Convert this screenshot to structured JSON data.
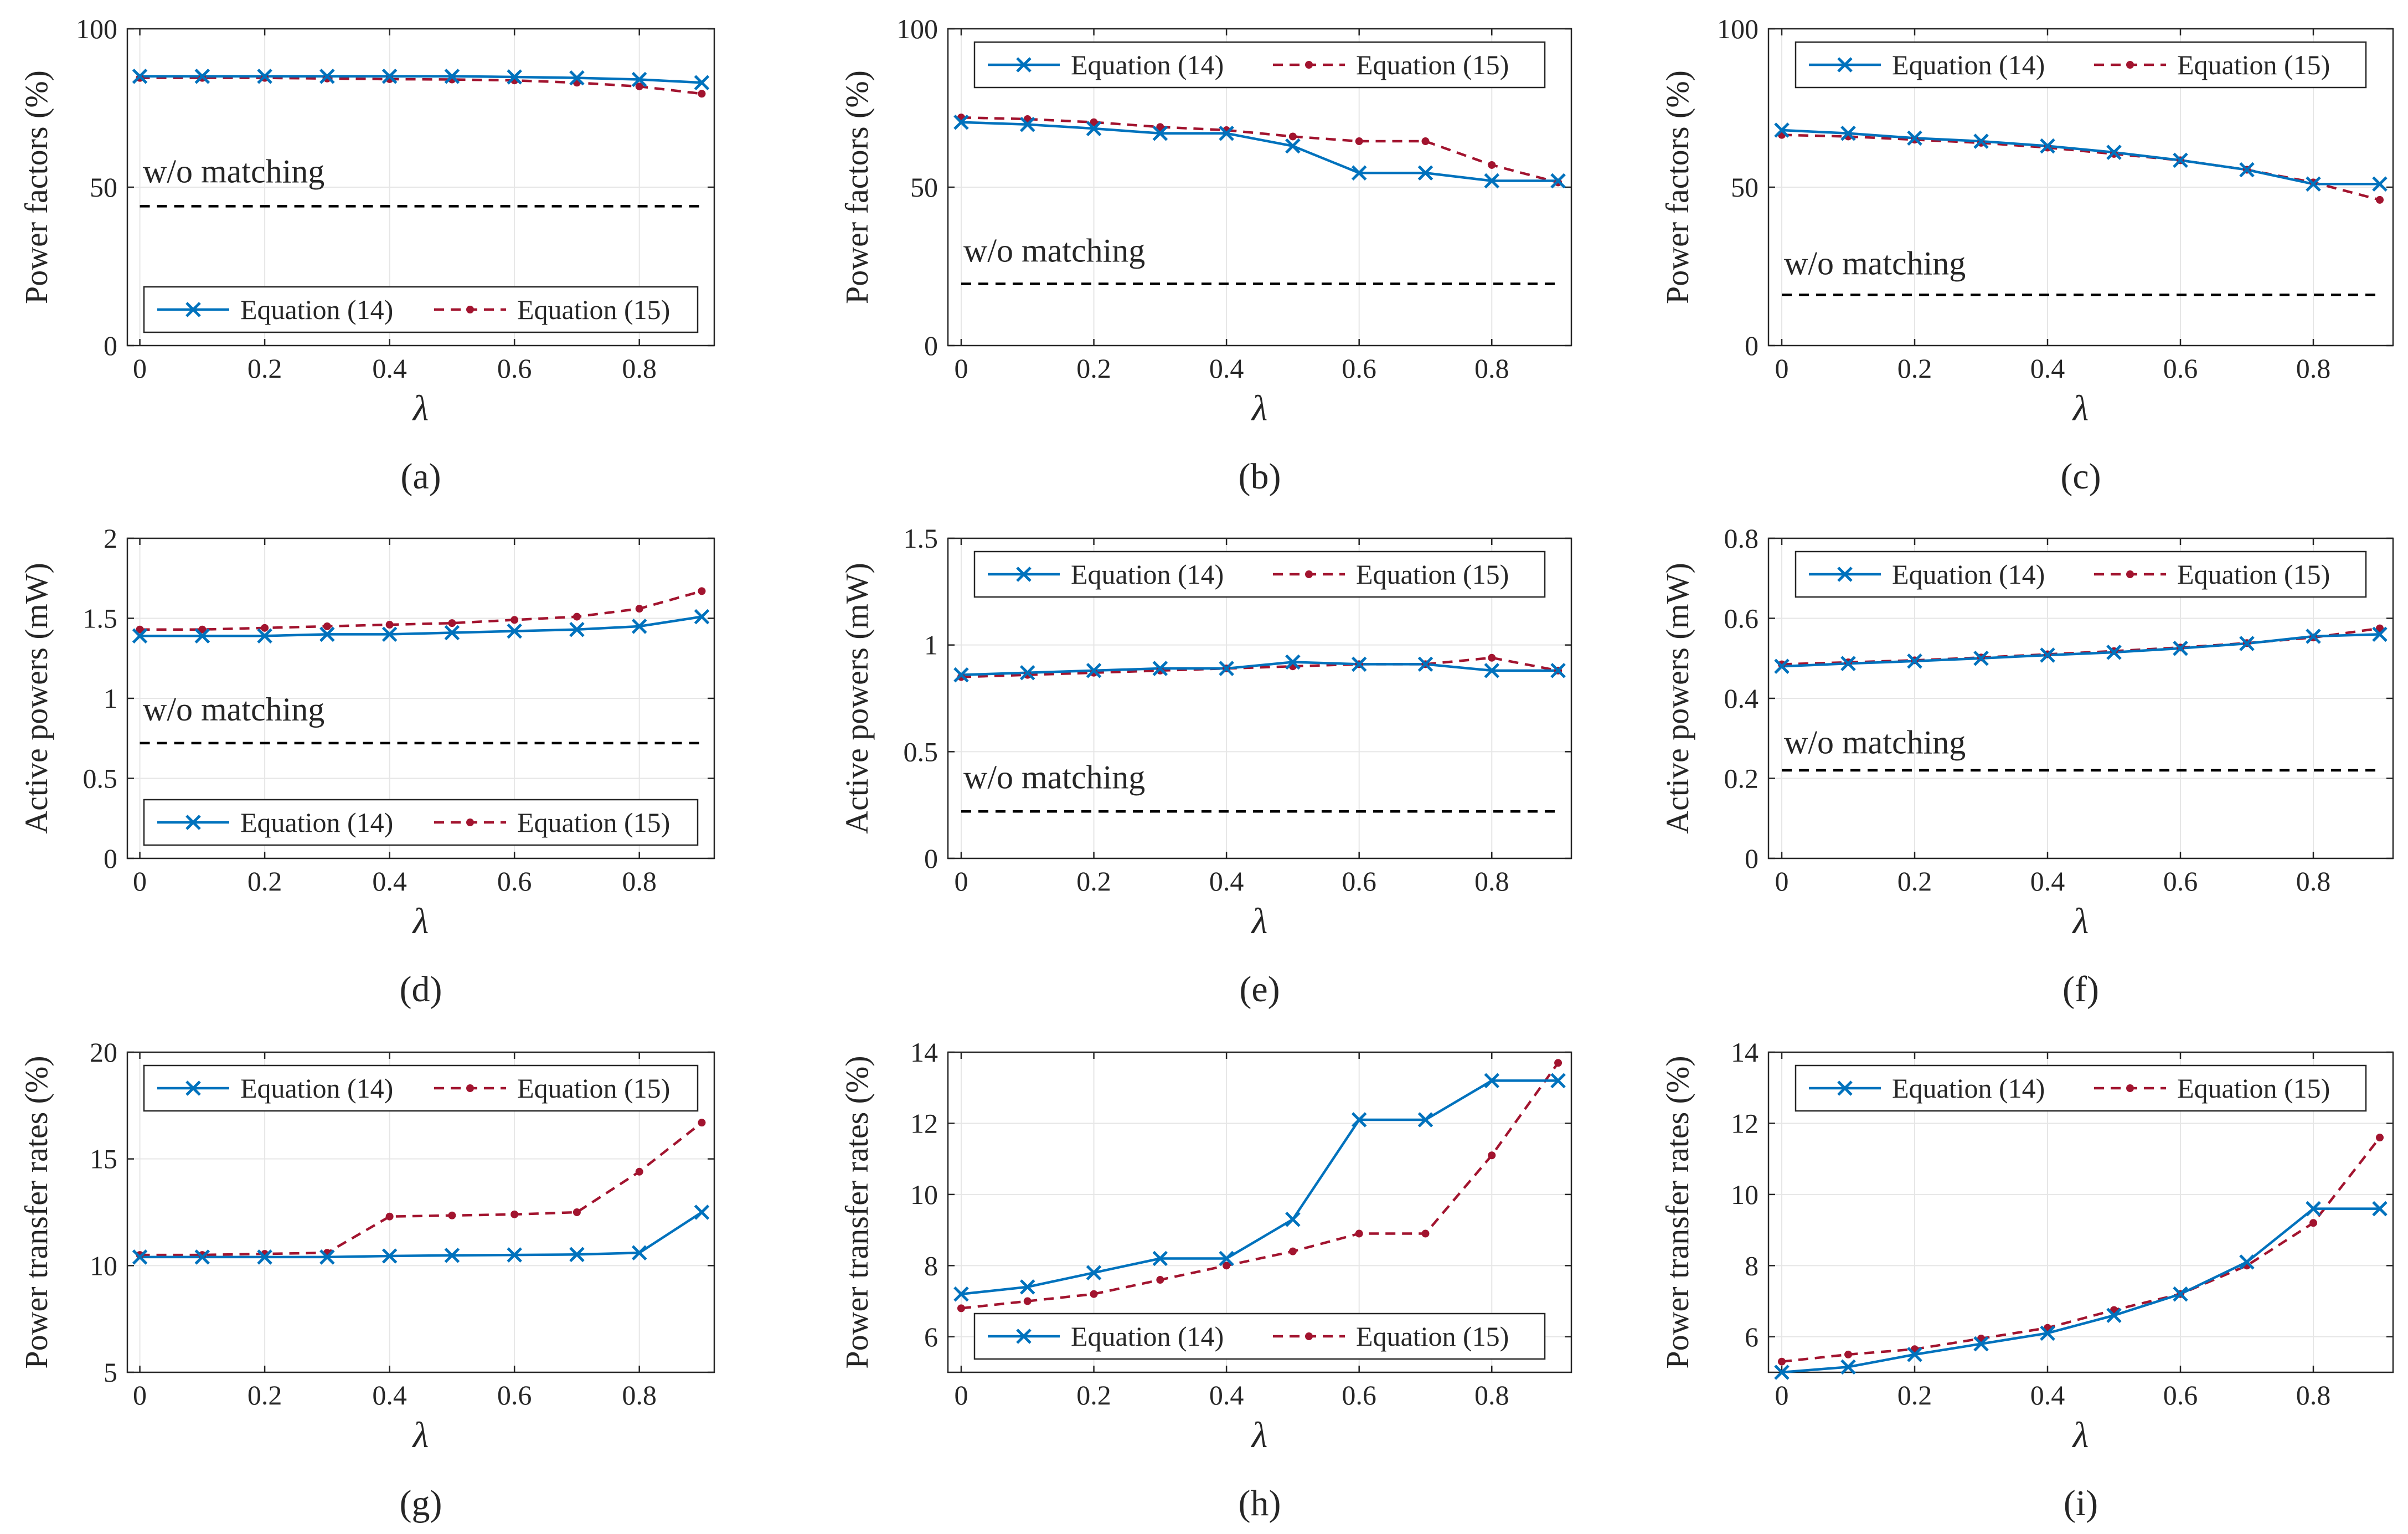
{
  "figure": {
    "series_names": [
      "Equation (14)",
      "Equation (15)"
    ],
    "colors": {
      "eq14": "#0072BD",
      "eq15": "#A2142F",
      "baseline": "#000000",
      "grid": "#e6e6e6",
      "axis": "#262626"
    }
  },
  "chart_data": [
    {
      "id": "a",
      "type": "line",
      "caption": "(a)",
      "xlabel": "λ",
      "ylabel": "Power factors (%)",
      "x": [
        0,
        0.1,
        0.2,
        0.3,
        0.4,
        0.5,
        0.6,
        0.7,
        0.8,
        0.9
      ],
      "xlim": [
        -0.02,
        0.92
      ],
      "xticks": [
        0,
        0.2,
        0.4,
        0.6,
        0.8
      ],
      "xtick_labels": [
        "0",
        "0.2",
        "0.4",
        "0.6",
        "0.8"
      ],
      "ylim": [
        0,
        100
      ],
      "yticks": [
        0,
        50,
        100
      ],
      "ytick_labels": [
        "0",
        "50",
        "100"
      ],
      "series": [
        {
          "name": "Equation (14)",
          "values": [
            85,
            85,
            85,
            85,
            85,
            85,
            84.8,
            84.5,
            84,
            83
          ]
        },
        {
          "name": "Equation (15)",
          "values": [
            84.5,
            84.5,
            84.5,
            84.3,
            84.1,
            84,
            83.7,
            83,
            81.8,
            79.5
          ]
        }
      ],
      "baseline": {
        "label": "w/o matching",
        "value": 44,
        "label_value": 55
      },
      "legend": "bottom",
      "grid": true
    },
    {
      "id": "b",
      "type": "line",
      "caption": "(b)",
      "xlabel": "λ",
      "ylabel": "Power factors (%)",
      "x": [
        0,
        0.1,
        0.2,
        0.3,
        0.4,
        0.5,
        0.6,
        0.7,
        0.8,
        0.9
      ],
      "xlim": [
        -0.02,
        0.92
      ],
      "xticks": [
        0,
        0.2,
        0.4,
        0.6,
        0.8
      ],
      "xtick_labels": [
        "0",
        "0.2",
        "0.4",
        "0.6",
        "0.8"
      ],
      "ylim": [
        0,
        100
      ],
      "yticks": [
        0,
        50,
        100
      ],
      "ytick_labels": [
        "0",
        "50",
        "100"
      ],
      "series": [
        {
          "name": "Equation (14)",
          "values": [
            70.5,
            69.8,
            68.5,
            67,
            67,
            63,
            54.5,
            54.5,
            52,
            52
          ]
        },
        {
          "name": "Equation (15)",
          "values": [
            72,
            71.5,
            70.5,
            69,
            68,
            66,
            64.5,
            64.5,
            57,
            51.5
          ]
        }
      ],
      "baseline": {
        "label": "w/o matching",
        "value": 19.5,
        "label_value": 30
      },
      "legend": "top",
      "grid": true
    },
    {
      "id": "c",
      "type": "line",
      "caption": "(c)",
      "xlabel": "λ",
      "ylabel": "Power factors (%)",
      "x": [
        0,
        0.1,
        0.2,
        0.3,
        0.4,
        0.5,
        0.6,
        0.7,
        0.8,
        0.9
      ],
      "xlim": [
        -0.02,
        0.92
      ],
      "xticks": [
        0,
        0.2,
        0.4,
        0.6,
        0.8
      ],
      "xtick_labels": [
        "0",
        "0.2",
        "0.4",
        "0.6",
        "0.8"
      ],
      "ylim": [
        0,
        100
      ],
      "yticks": [
        0,
        50,
        100
      ],
      "ytick_labels": [
        "0",
        "50",
        "100"
      ],
      "series": [
        {
          "name": "Equation (14)",
          "values": [
            68,
            67,
            65.5,
            64.5,
            63,
            61,
            58.5,
            55.5,
            51,
            51
          ]
        },
        {
          "name": "Equation (15)",
          "values": [
            66.5,
            66,
            65,
            64,
            62.5,
            60.5,
            58.5,
            55.5,
            51.5,
            46
          ]
        }
      ],
      "baseline": {
        "label": "w/o matching",
        "value": 16,
        "label_value": 26
      },
      "legend": "top",
      "grid": true
    },
    {
      "id": "d",
      "type": "line",
      "caption": "(d)",
      "xlabel": "λ",
      "ylabel": "Active powers (mW)",
      "x": [
        0,
        0.1,
        0.2,
        0.3,
        0.4,
        0.5,
        0.6,
        0.7,
        0.8,
        0.9
      ],
      "xlim": [
        -0.02,
        0.92
      ],
      "xticks": [
        0,
        0.2,
        0.4,
        0.6,
        0.8
      ],
      "xtick_labels": [
        "0",
        "0.2",
        "0.4",
        "0.6",
        "0.8"
      ],
      "ylim": [
        0,
        2
      ],
      "yticks": [
        0,
        0.5,
        1,
        1.5,
        2
      ],
      "ytick_labels": [
        "0",
        "0.5",
        "1",
        "1.5",
        "2"
      ],
      "series": [
        {
          "name": "Equation (14)",
          "values": [
            1.39,
            1.39,
            1.39,
            1.4,
            1.4,
            1.41,
            1.42,
            1.43,
            1.45,
            1.51
          ]
        },
        {
          "name": "Equation (15)",
          "values": [
            1.43,
            1.43,
            1.44,
            1.45,
            1.46,
            1.47,
            1.49,
            1.51,
            1.56,
            1.67
          ]
        }
      ],
      "baseline": {
        "label": "w/o matching",
        "value": 0.72,
        "label_value": 0.93
      },
      "legend": "bottom",
      "grid": true
    },
    {
      "id": "e",
      "type": "line",
      "caption": "(e)",
      "xlabel": "λ",
      "ylabel": "Active powers (mW)",
      "x": [
        0,
        0.1,
        0.2,
        0.3,
        0.4,
        0.5,
        0.6,
        0.7,
        0.8,
        0.9
      ],
      "xlim": [
        -0.02,
        0.92
      ],
      "xticks": [
        0,
        0.2,
        0.4,
        0.6,
        0.8
      ],
      "xtick_labels": [
        "0",
        "0.2",
        "0.4",
        "0.6",
        "0.8"
      ],
      "ylim": [
        0,
        1.5
      ],
      "yticks": [
        0,
        0.5,
        1,
        1.5
      ],
      "ytick_labels": [
        "0",
        "0.5",
        "1",
        "1.5"
      ],
      "series": [
        {
          "name": "Equation (14)",
          "values": [
            0.86,
            0.87,
            0.88,
            0.89,
            0.89,
            0.92,
            0.91,
            0.91,
            0.88,
            0.88
          ]
        },
        {
          "name": "Equation (15)",
          "values": [
            0.85,
            0.86,
            0.87,
            0.88,
            0.89,
            0.9,
            0.91,
            0.91,
            0.94,
            0.88
          ]
        }
      ],
      "baseline": {
        "label": "w/o matching",
        "value": 0.22,
        "label_value": 0.38
      },
      "legend": "top",
      "grid": true
    },
    {
      "id": "f",
      "type": "line",
      "caption": "(f)",
      "xlabel": "λ",
      "ylabel": "Active powers (mW)",
      "x": [
        0,
        0.1,
        0.2,
        0.3,
        0.4,
        0.5,
        0.6,
        0.7,
        0.8,
        0.9
      ],
      "xlim": [
        -0.02,
        0.92
      ],
      "xticks": [
        0,
        0.2,
        0.4,
        0.6,
        0.8
      ],
      "xtick_labels": [
        "0",
        "0.2",
        "0.4",
        "0.6",
        "0.8"
      ],
      "ylim": [
        0,
        0.8
      ],
      "yticks": [
        0,
        0.2,
        0.4,
        0.6,
        0.8
      ],
      "ytick_labels": [
        "0",
        "0.2",
        "0.4",
        "0.6",
        "0.8"
      ],
      "series": [
        {
          "name": "Equation (14)",
          "values": [
            0.48,
            0.487,
            0.493,
            0.5,
            0.508,
            0.515,
            0.525,
            0.537,
            0.555,
            0.56
          ]
        },
        {
          "name": "Equation (15)",
          "values": [
            0.485,
            0.49,
            0.495,
            0.502,
            0.51,
            0.518,
            0.527,
            0.538,
            0.552,
            0.575
          ]
        }
      ],
      "baseline": {
        "label": "w/o matching",
        "value": 0.22,
        "label_value": 0.29
      },
      "legend": "top",
      "grid": true
    },
    {
      "id": "g",
      "type": "line",
      "caption": "(g)",
      "xlabel": "λ",
      "ylabel": "Power transfer rates (%)",
      "x": [
        0,
        0.1,
        0.2,
        0.3,
        0.4,
        0.5,
        0.6,
        0.7,
        0.8,
        0.9
      ],
      "xlim": [
        -0.02,
        0.92
      ],
      "xticks": [
        0,
        0.2,
        0.4,
        0.6,
        0.8
      ],
      "xtick_labels": [
        "0",
        "0.2",
        "0.4",
        "0.6",
        "0.8"
      ],
      "ylim": [
        5,
        20
      ],
      "yticks": [
        5,
        10,
        15,
        20
      ],
      "ytick_labels": [
        "5",
        "10",
        "15",
        "20"
      ],
      "series": [
        {
          "name": "Equation (14)",
          "values": [
            10.4,
            10.4,
            10.4,
            10.4,
            10.45,
            10.48,
            10.5,
            10.52,
            10.6,
            12.5
          ]
        },
        {
          "name": "Equation (15)",
          "values": [
            10.5,
            10.5,
            10.55,
            10.6,
            12.3,
            12.35,
            12.4,
            12.5,
            14.4,
            16.7
          ]
        }
      ],
      "legend": "top",
      "grid": true
    },
    {
      "id": "h",
      "type": "line",
      "caption": "(h)",
      "xlabel": "λ",
      "ylabel": "Power transfer rates (%)",
      "x": [
        0,
        0.1,
        0.2,
        0.3,
        0.4,
        0.5,
        0.6,
        0.7,
        0.8,
        0.9
      ],
      "xlim": [
        -0.02,
        0.92
      ],
      "xticks": [
        0,
        0.2,
        0.4,
        0.6,
        0.8
      ],
      "xtick_labels": [
        "0",
        "0.2",
        "0.4",
        "0.6",
        "0.8"
      ],
      "ylim": [
        5,
        14
      ],
      "yticks": [
        6,
        8,
        10,
        12,
        14
      ],
      "ytick_labels": [
        "6",
        "8",
        "10",
        "12",
        "14"
      ],
      "series": [
        {
          "name": "Equation (14)",
          "values": [
            7.2,
            7.4,
            7.8,
            8.2,
            8.2,
            9.3,
            12.1,
            12.1,
            13.2,
            13.2
          ]
        },
        {
          "name": "Equation (15)",
          "values": [
            6.8,
            7.0,
            7.2,
            7.6,
            8.0,
            8.4,
            8.9,
            8.9,
            11.1,
            13.7
          ]
        }
      ],
      "legend": "bottom",
      "grid": true
    },
    {
      "id": "i",
      "type": "line",
      "caption": "(i)",
      "xlabel": "λ",
      "ylabel": "Power transfer rates (%)",
      "x": [
        0,
        0.1,
        0.2,
        0.3,
        0.4,
        0.5,
        0.6,
        0.7,
        0.8,
        0.9
      ],
      "xlim": [
        -0.02,
        0.92
      ],
      "xticks": [
        0,
        0.2,
        0.4,
        0.6,
        0.8
      ],
      "xtick_labels": [
        "0",
        "0.2",
        "0.4",
        "0.6",
        "0.8"
      ],
      "ylim": [
        5,
        14
      ],
      "yticks": [
        6,
        8,
        10,
        12,
        14
      ],
      "ytick_labels": [
        "6",
        "8",
        "10",
        "12",
        "14"
      ],
      "series": [
        {
          "name": "Equation (14)",
          "values": [
            5.0,
            5.15,
            5.5,
            5.8,
            6.1,
            6.6,
            7.2,
            8.1,
            9.6,
            9.6
          ]
        },
        {
          "name": "Equation (15)",
          "values": [
            5.3,
            5.5,
            5.65,
            5.95,
            6.25,
            6.75,
            7.2,
            8.0,
            9.2,
            11.6
          ]
        }
      ],
      "legend": "top",
      "grid": true
    }
  ]
}
